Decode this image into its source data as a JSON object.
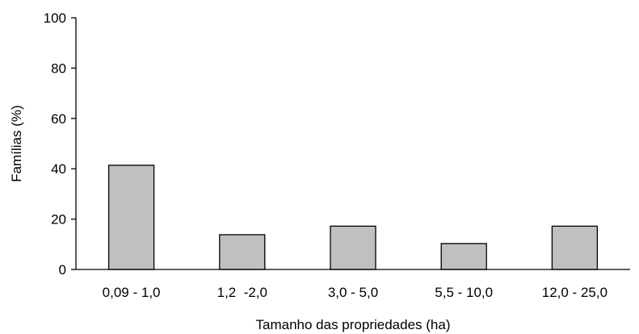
{
  "chart_data": {
    "type": "bar",
    "title": "",
    "xlabel": "Tamanho das propriedades (ha)",
    "ylabel": "Famílias (%)",
    "categories": [
      "0,09 - 1,0",
      "1,2  -2,0",
      "3,0 - 5,0",
      "5,5 - 10,0",
      "12,0 - 25,0"
    ],
    "values": [
      41.4,
      13.8,
      17.2,
      10.3,
      17.2
    ],
    "ylim": [
      0,
      100
    ],
    "yticks": [
      0,
      20,
      40,
      60,
      80,
      100
    ],
    "ytick_labels": [
      "0",
      "20",
      "40",
      "60",
      "80",
      "100"
    ],
    "grid": false,
    "legend": "none",
    "bar_color": "#c0c0c0",
    "edge_color": "#000000"
  }
}
